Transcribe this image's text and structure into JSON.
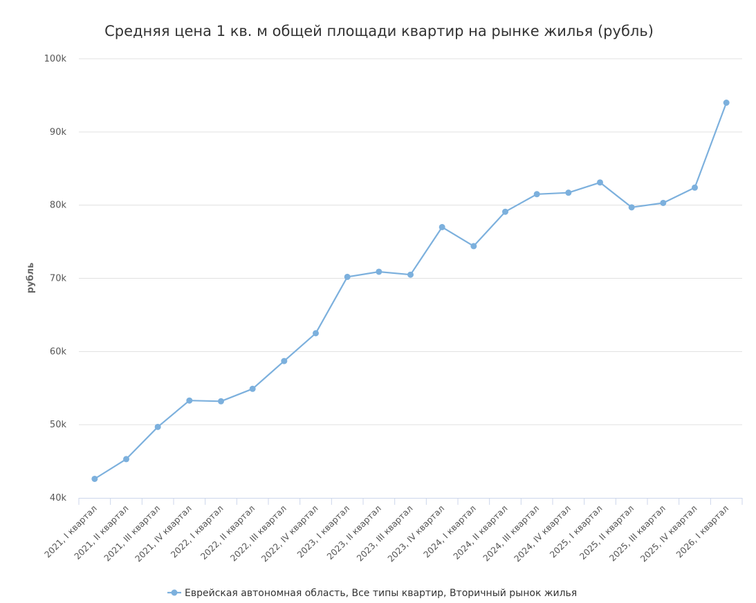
{
  "chart_data": {
    "type": "line",
    "title": "Средняя цена 1 кв. м общей площади квартир на рынке жилья (рубль)",
    "ylabel": "рубль",
    "xlabel": "",
    "ylim": [
      40000,
      100000
    ],
    "yticks": [
      40000,
      50000,
      60000,
      70000,
      80000,
      90000,
      100000
    ],
    "ytick_labels": [
      "40k",
      "50k",
      "60k",
      "70k",
      "80k",
      "90k",
      "100k"
    ],
    "categories": [
      "2021, I квартал",
      "2021, II квартал",
      "2021, III квартал",
      "2021, IV квартал",
      "2022, I квартал",
      "2022, II квартал",
      "2022, III квартал",
      "2022, IV квартал",
      "2023, I квартал",
      "2023, II квартал",
      "2023, III квартал",
      "2023, IV квартал",
      "2024, I квартал",
      "2024, II квартал",
      "2024, III квартал",
      "2024, IV квартал",
      "2025, I квартал",
      "2025, II квартал",
      "2025, III квартал",
      "2025, IV квартал",
      "2026, I квартал"
    ],
    "series": [
      {
        "name": "Еврейская автономная область, Все типы квартир, Вторичный рынок жилья",
        "color": "#7cb0dd",
        "values": [
          42600,
          45300,
          49700,
          53300,
          53200,
          54900,
          58700,
          62500,
          70200,
          70900,
          70500,
          77000,
          74400,
          79100,
          81500,
          81700,
          83100,
          79700,
          80300,
          82400,
          94000
        ]
      }
    ],
    "grid": true,
    "legend_position": "bottom-center"
  }
}
